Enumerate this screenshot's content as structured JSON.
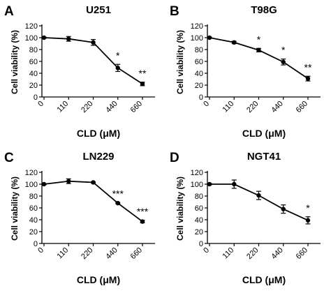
{
  "chart_data": [
    {
      "panel": "A",
      "title": "U251",
      "type": "line",
      "xlabel": "CLD (μM)",
      "ylabel": "Cell viability (%)",
      "categories": [
        "0",
        "110",
        "220",
        "440",
        "660"
      ],
      "yticks": [
        "0",
        "20",
        "40",
        "60",
        "80",
        "100",
        "120"
      ],
      "ylim": [
        0,
        120
      ],
      "values": [
        100,
        98,
        92,
        49,
        22
      ],
      "errors": [
        1,
        4,
        5,
        6,
        3
      ],
      "significance": [
        "",
        "",
        "",
        "*",
        "**"
      ],
      "color": "#000000"
    },
    {
      "panel": "B",
      "title": "T98G",
      "type": "line",
      "xlabel": "CLD (μM)",
      "ylabel": "Cell viability (%)",
      "categories": [
        "0",
        "110",
        "220",
        "440",
        "660"
      ],
      "yticks": [
        "0",
        "20",
        "40",
        "60",
        "80",
        "100",
        "120"
      ],
      "ylim": [
        0,
        120
      ],
      "values": [
        100,
        92,
        79,
        59,
        31
      ],
      "errors": [
        1,
        2,
        3,
        5,
        4
      ],
      "significance": [
        "",
        "",
        "*",
        "*",
        "**"
      ],
      "color": "#000000"
    },
    {
      "panel": "C",
      "title": "LN229",
      "type": "line",
      "xlabel": "CLD (μM)",
      "ylabel": "Cell viability (%)",
      "categories": [
        "0",
        "110",
        "220",
        "440",
        "660"
      ],
      "yticks": [
        "0",
        "20",
        "40",
        "60",
        "80",
        "100",
        "120"
      ],
      "ylim": [
        0,
        120
      ],
      "values": [
        100,
        105,
        103,
        68,
        37
      ],
      "errors": [
        1,
        4,
        1,
        1,
        2
      ],
      "significance": [
        "",
        "",
        "",
        "***",
        "***"
      ],
      "color": "#000000"
    },
    {
      "panel": "D",
      "title": "NGT41",
      "type": "line",
      "xlabel": "CLD (μM)",
      "ylabel": "Cell viability (%)",
      "categories": [
        "0",
        "110",
        "220",
        "440",
        "660"
      ],
      "yticks": [
        "0",
        "20",
        "40",
        "60",
        "80",
        "100",
        "120"
      ],
      "ylim": [
        0,
        120
      ],
      "values": [
        100,
        100,
        81,
        58,
        39
      ],
      "errors": [
        1,
        7,
        7,
        7,
        6
      ],
      "significance": [
        "",
        "",
        "",
        "",
        "*"
      ],
      "color": "#000000"
    }
  ]
}
